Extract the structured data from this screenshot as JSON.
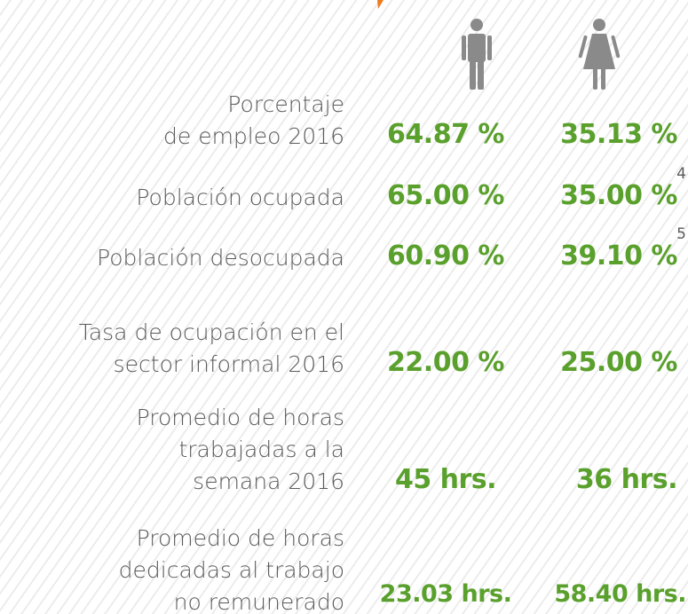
{
  "rows": [
    {
      "label": [
        "Porcentaje",
        "de empleo 2016"
      ],
      "men": "64.87 %",
      "women": "35.13 %"
    },
    {
      "label": [
        "Población ocupada"
      ],
      "men": "65.00 %",
      "women": "35.00 %",
      "note": "4"
    },
    {
      "label": [
        "Población desocupada"
      ],
      "men": "60.90 %",
      "women": "39.10 %",
      "note": "5"
    },
    {
      "label": [
        "Tasa de ocupación en el",
        "sector informal 2016"
      ],
      "men": "22.00 %",
      "women": "25.00 %"
    },
    {
      "label": [
        "Promedio de horas",
        "trabajadas a la",
        "semana 2016"
      ],
      "men": "45 hrs.",
      "women": "36 hrs."
    },
    {
      "label": [
        "Promedio de horas",
        "dedicadas al trabajo",
        "no remunerado"
      ],
      "men": "23.03 hrs.",
      "women": "58.40 hrs."
    }
  ]
}
